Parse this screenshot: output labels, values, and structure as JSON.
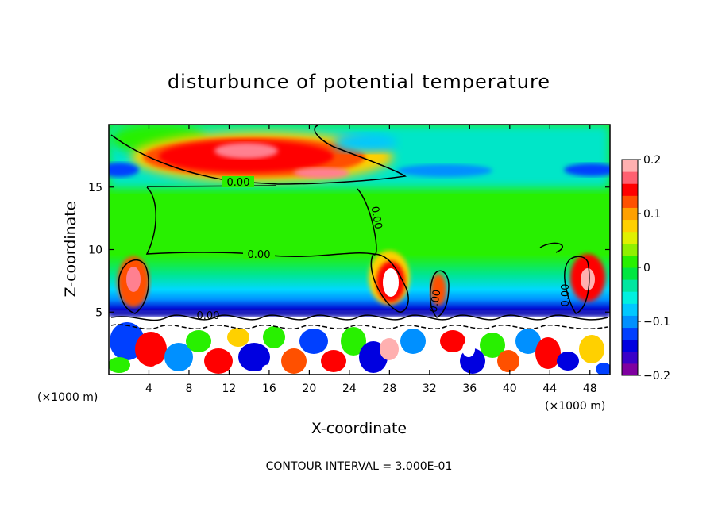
{
  "chart_data": {
    "type": "heatmap",
    "title": "disturbunce of potential temperature",
    "xlabel": "X-coordinate",
    "ylabel": "Z-coordinate",
    "x_unit_left": "(×1000 m)",
    "x_unit_right": "(×1000 m)",
    "footnote": "CONTOUR INTERVAL = 3.000E-01",
    "xlim": [
      0,
      50
    ],
    "ylim": [
      0,
      20
    ],
    "x_ticks": [
      4,
      8,
      12,
      16,
      20,
      24,
      28,
      32,
      36,
      40,
      44,
      48
    ],
    "y_ticks": [
      5,
      10,
      15
    ],
    "colorbar": {
      "min": -0.2,
      "max": 0.2,
      "tick_values": [
        0.2,
        0.1,
        0,
        -0.1,
        -0.2
      ],
      "tick_labels": [
        "0.2",
        "0.1",
        "0",
        "−0.1",
        "−0.2"
      ],
      "colors": [
        "#7f00a0",
        "#3a00c8",
        "#0000e0",
        "#0040ff",
        "#0090ff",
        "#00c8ff",
        "#00f0e0",
        "#00e6a0",
        "#00e640",
        "#28f000",
        "#90f000",
        "#e0f000",
        "#ffd000",
        "#ffa000",
        "#ff5000",
        "#ff0000",
        "#ff6070",
        "#ffb0b0"
      ]
    },
    "contour_labels": [
      {
        "text": "0.00",
        "x": 13,
        "z": 15.1
      },
      {
        "text": "0.00",
        "x": 15,
        "z": 9.8
      },
      {
        "text": "0.00",
        "x": 27,
        "z": 12.5
      },
      {
        "text": "0.00",
        "x": 9,
        "z": 4.5
      },
      {
        "text": "0.00",
        "x": 33,
        "z": 5.5
      },
      {
        "text": "0.00",
        "x": 46,
        "z": 6.0
      }
    ],
    "features": [
      {
        "kind": "positive-max",
        "x": 14,
        "z": 17.5,
        "value": 0.2
      },
      {
        "kind": "positive-max",
        "x": 22,
        "z": 16.2,
        "value": 0.17
      },
      {
        "kind": "negative-band",
        "x": 2,
        "z": 16.0,
        "value": -0.1
      },
      {
        "kind": "negative-band",
        "x": 47,
        "z": 16.0,
        "value": -0.1
      },
      {
        "kind": "negative-layer",
        "x": 25,
        "z": 4.6,
        "value": -0.2
      }
    ]
  }
}
